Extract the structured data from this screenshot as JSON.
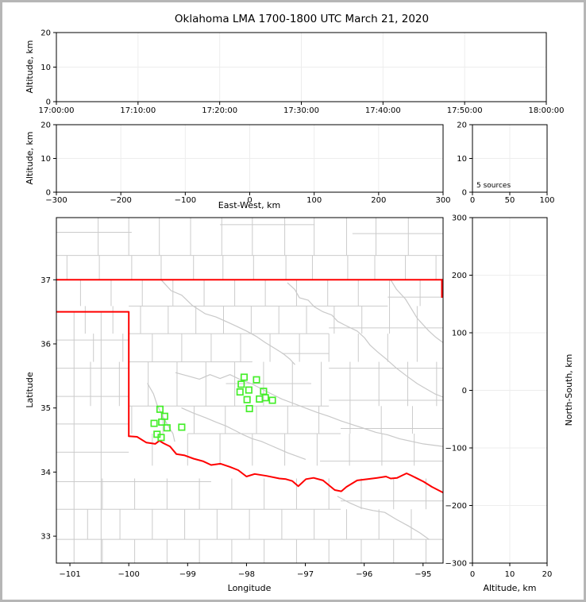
{
  "title": "Oklahoma LMA 1700-1800 UTC March 21, 2020",
  "colors": {
    "station_green": "#45ee2b",
    "state_border_red": "#ff0000",
    "county_gray": "#cbcbcb",
    "grid_gray": "#ededed"
  },
  "panels": {
    "time_height": {
      "ylabel": "Altitude, km",
      "xlim": [
        0,
        3600
      ],
      "ylim": [
        0,
        20
      ],
      "xticks": {
        "values": [
          0,
          600,
          1200,
          1800,
          2400,
          3000,
          3600
        ],
        "labels": [
          "17:00:00",
          "17:10:00",
          "17:20:00",
          "17:30:00",
          "17:40:00",
          "17:50:00",
          "18:00:00"
        ]
      },
      "yticks": {
        "values": [
          0,
          10,
          20
        ],
        "labels": [
          "0",
          "10",
          "20"
        ]
      },
      "grid": {
        "x": [
          600,
          1200,
          1800,
          2400,
          3000
        ],
        "y": [
          10
        ]
      }
    },
    "ew_height": {
      "ylabel": "Altitude, km",
      "xlabel": "East-West, km",
      "xlim": [
        -300,
        300
      ],
      "ylim": [
        0,
        20
      ],
      "xticks": {
        "values": [
          -300,
          -200,
          -100,
          0,
          100,
          200,
          300
        ],
        "labels": [
          "−300",
          "−200",
          "−100",
          "0",
          "100",
          "200",
          "300"
        ]
      },
      "yticks": {
        "values": [
          0,
          10,
          20
        ],
        "labels": [
          "0",
          "10",
          "20"
        ]
      },
      "grid": {
        "x": [
          -200,
          -100,
          0,
          100,
          200
        ],
        "y": [
          10
        ]
      }
    },
    "alt_hist": {
      "annotation": "5 sources",
      "xlim": [
        0,
        100
      ],
      "ylim": [
        0,
        20
      ],
      "xticks": {
        "values": [
          0,
          50,
          100
        ],
        "labels": [
          "0",
          "50",
          "100"
        ]
      },
      "yticks": {
        "values": [
          0,
          10,
          20
        ],
        "labels": [
          "0",
          "10",
          "20"
        ]
      },
      "grid": {
        "x": [
          50
        ],
        "y": [
          10
        ]
      }
    },
    "plan": {
      "xlabel": "Longitude",
      "ylabel": "Latitude",
      "xlim": [
        -101.23,
        -94.66
      ],
      "ylim": [
        32.58,
        37.97
      ],
      "xticks": {
        "values": [
          -101,
          -100,
          -99,
          -98,
          -97,
          -96,
          -95
        ],
        "labels": [
          "−101",
          "−100",
          "−99",
          "−98",
          "−97",
          "−96",
          "−95"
        ]
      },
      "yticks": {
        "values": [
          33,
          34,
          35,
          36,
          37
        ],
        "labels": [
          "33",
          "34",
          "35",
          "36",
          "37"
        ]
      },
      "grid": {
        "x": [],
        "y": []
      }
    },
    "ns_height": {
      "xlabel": "Altitude, km",
      "ylabel": "North-South, km",
      "xlim": [
        0,
        20
      ],
      "ylim": [
        -300,
        300
      ],
      "xticks": {
        "values": [
          0,
          10,
          20
        ],
        "labels": [
          "0",
          "10",
          "20"
        ]
      },
      "yticks": {
        "values": [
          -300,
          -200,
          -100,
          0,
          100,
          200,
          300
        ],
        "labels": [
          "−300",
          "−200",
          "−100",
          "0",
          "100",
          "200",
          "300"
        ]
      },
      "grid": {
        "x": [
          10
        ],
        "y": [
          -200,
          -100,
          0,
          100,
          200
        ]
      }
    }
  },
  "chart_data": {
    "type": "scatter",
    "title": "Oklahoma LMA 1700-1800 UTC March 21, 2020",
    "annotation": "5 sources",
    "note": "Altitude-vs-time, altitude-vs-east-west, source-histogram and north-south-vs-altitude panels are empty; plan view shows Oklahoma county map with LMA station markers (green squares).",
    "stations_lon_lat": [
      [
        -98.04,
        35.48
      ],
      [
        -97.83,
        35.44
      ],
      [
        -98.09,
        35.37
      ],
      [
        -97.96,
        35.28
      ],
      [
        -98.11,
        35.25
      ],
      [
        -97.99,
        35.13
      ],
      [
        -97.78,
        35.14
      ],
      [
        -97.71,
        35.26
      ],
      [
        -97.68,
        35.16
      ],
      [
        -97.56,
        35.12
      ],
      [
        -97.95,
        34.99
      ],
      [
        -99.47,
        34.98
      ],
      [
        -99.39,
        34.87
      ],
      [
        -99.57,
        34.76
      ],
      [
        -99.44,
        34.78
      ],
      [
        -99.35,
        34.69
      ],
      [
        -99.1,
        34.7
      ],
      [
        -99.52,
        34.59
      ],
      [
        -99.45,
        34.54
      ]
    ],
    "state_border": {
      "kansas_line": [
        [
          -101.23,
          37.0
        ],
        [
          -94.66,
          37.0
        ]
      ],
      "missouri_line": [
        [
          -94.68,
          37.0
        ],
        [
          -94.68,
          36.73
        ]
      ],
      "panhandle": [
        [
          -101.23,
          36.5
        ],
        [
          -100.0,
          36.5
        ],
        [
          -100.0,
          34.56
        ]
      ],
      "red_river": [
        [
          -100.0,
          34.56
        ],
        [
          -99.86,
          34.55
        ],
        [
          -99.7,
          34.46
        ],
        [
          -99.55,
          34.44
        ],
        [
          -99.48,
          34.49
        ],
        [
          -99.41,
          34.45
        ],
        [
          -99.3,
          34.4
        ],
        [
          -99.19,
          34.28
        ],
        [
          -99.05,
          34.26
        ],
        [
          -98.9,
          34.21
        ],
        [
          -98.74,
          34.17
        ],
        [
          -98.6,
          34.11
        ],
        [
          -98.44,
          34.13
        ],
        [
          -98.28,
          34.08
        ],
        [
          -98.14,
          34.03
        ],
        [
          -98.0,
          33.93
        ],
        [
          -97.86,
          33.97
        ],
        [
          -97.66,
          33.94
        ],
        [
          -97.44,
          33.9
        ],
        [
          -97.33,
          33.89
        ],
        [
          -97.22,
          33.86
        ],
        [
          -97.12,
          33.78
        ],
        [
          -96.99,
          33.89
        ],
        [
          -96.86,
          33.91
        ],
        [
          -96.7,
          33.87
        ],
        [
          -96.5,
          33.72
        ],
        [
          -96.39,
          33.7
        ],
        [
          -96.3,
          33.77
        ],
        [
          -96.12,
          33.87
        ],
        [
          -95.94,
          33.89
        ],
        [
          -95.78,
          33.91
        ],
        [
          -95.63,
          33.93
        ],
        [
          -95.55,
          33.9
        ],
        [
          -95.44,
          33.91
        ],
        [
          -95.28,
          33.98
        ],
        [
          -95.21,
          33.95
        ],
        [
          -95.12,
          33.91
        ],
        [
          -94.99,
          33.85
        ],
        [
          -94.85,
          33.77
        ],
        [
          -94.66,
          33.68
        ]
      ]
    },
    "rivers": [
      [
        [
          -99.45,
          37.0
        ],
        [
          -99.28,
          36.83
        ],
        [
          -99.1,
          36.76
        ],
        [
          -98.92,
          36.6
        ],
        [
          -98.7,
          36.47
        ],
        [
          -98.52,
          36.42
        ],
        [
          -98.35,
          36.35
        ],
        [
          -98.18,
          36.28
        ],
        [
          -98.0,
          36.2
        ],
        [
          -97.84,
          36.12
        ],
        [
          -97.68,
          36.02
        ],
        [
          -97.52,
          35.93
        ],
        [
          -97.38,
          35.85
        ],
        [
          -97.26,
          35.76
        ],
        [
          -97.18,
          35.68
        ]
      ],
      [
        [
          -97.3,
          36.95
        ],
        [
          -97.18,
          36.85
        ],
        [
          -97.1,
          36.72
        ],
        [
          -96.95,
          36.68
        ],
        [
          -96.85,
          36.58
        ],
        [
          -96.7,
          36.5
        ],
        [
          -96.55,
          36.45
        ],
        [
          -96.45,
          36.35
        ],
        [
          -96.3,
          36.28
        ],
        [
          -96.12,
          36.2
        ],
        [
          -96.0,
          36.1
        ],
        [
          -95.9,
          35.98
        ],
        [
          -95.78,
          35.88
        ],
        [
          -95.62,
          35.76
        ],
        [
          -95.45,
          35.62
        ],
        [
          -95.28,
          35.5
        ],
        [
          -95.1,
          35.38
        ],
        [
          -94.95,
          35.3
        ],
        [
          -94.8,
          35.22
        ],
        [
          -94.66,
          35.17
        ]
      ],
      [
        [
          -99.2,
          35.55
        ],
        [
          -99.0,
          35.5
        ],
        [
          -98.8,
          35.45
        ],
        [
          -98.62,
          35.52
        ],
        [
          -98.45,
          35.46
        ],
        [
          -98.28,
          35.52
        ],
        [
          -98.1,
          35.44
        ],
        [
          -97.92,
          35.38
        ],
        [
          -97.75,
          35.3
        ],
        [
          -97.58,
          35.22
        ],
        [
          -97.4,
          35.14
        ],
        [
          -97.2,
          35.07
        ],
        [
          -97.0,
          35.0
        ],
        [
          -96.8,
          34.93
        ],
        [
          -96.6,
          34.87
        ],
        [
          -96.4,
          34.8
        ],
        [
          -96.2,
          34.74
        ],
        [
          -96.0,
          34.68
        ],
        [
          -95.8,
          34.62
        ],
        [
          -95.6,
          34.58
        ],
        [
          -95.4,
          34.52
        ],
        [
          -95.2,
          34.48
        ],
        [
          -95.0,
          34.44
        ],
        [
          -94.66,
          34.4
        ]
      ],
      [
        [
          -99.68,
          35.38
        ],
        [
          -99.58,
          35.22
        ],
        [
          -99.52,
          35.05
        ],
        [
          -99.44,
          34.9
        ],
        [
          -99.35,
          34.75
        ],
        [
          -99.25,
          34.6
        ],
        [
          -99.22,
          34.48
        ]
      ],
      [
        [
          -99.1,
          35.0
        ],
        [
          -98.9,
          34.92
        ],
        [
          -98.7,
          34.85
        ],
        [
          -98.52,
          34.78
        ],
        [
          -98.35,
          34.72
        ],
        [
          -98.2,
          34.65
        ],
        [
          -98.05,
          34.58
        ],
        [
          -97.9,
          34.52
        ],
        [
          -97.75,
          34.48
        ],
        [
          -97.6,
          34.42
        ],
        [
          -97.45,
          34.36
        ],
        [
          -97.3,
          34.3
        ],
        [
          -97.15,
          34.25
        ],
        [
          -97.0,
          34.2
        ]
      ],
      [
        [
          -96.45,
          33.62
        ],
        [
          -96.25,
          33.52
        ],
        [
          -96.05,
          33.44
        ],
        [
          -95.85,
          33.4
        ],
        [
          -95.65,
          33.37
        ],
        [
          -95.45,
          33.26
        ],
        [
          -95.25,
          33.16
        ],
        [
          -95.05,
          33.05
        ],
        [
          -94.9,
          32.95
        ]
      ],
      [
        [
          -95.55,
          37.0
        ],
        [
          -95.45,
          36.85
        ],
        [
          -95.3,
          36.7
        ],
        [
          -95.2,
          36.55
        ],
        [
          -95.1,
          36.4
        ],
        [
          -95.0,
          36.3
        ],
        [
          -94.9,
          36.2
        ],
        [
          -94.78,
          36.1
        ],
        [
          -94.66,
          36.02
        ]
      ]
    ],
    "counties": {
      "h_segments": [
        [
          37.74,
          -101.23,
          -99.95
        ],
        [
          37.86,
          -98.45,
          -96.85
        ],
        [
          37.72,
          -96.2,
          -94.66
        ],
        [
          37.38,
          -101.23,
          -94.66
        ],
        [
          36.59,
          -100.0,
          -95.6
        ],
        [
          36.73,
          -95.6,
          -94.66
        ],
        [
          36.16,
          -100.0,
          -96.6
        ],
        [
          36.25,
          -96.6,
          -94.66
        ],
        [
          35.72,
          -100.0,
          -97.9
        ],
        [
          35.85,
          -97.4,
          -96.6
        ],
        [
          35.62,
          -96.6,
          -94.66
        ],
        [
          35.38,
          -98.35,
          -96.9
        ],
        [
          35.03,
          -100.0,
          -96.6
        ],
        [
          35.12,
          -96.6,
          -94.66
        ],
        [
          34.6,
          -99.0,
          -96.4
        ],
        [
          34.68,
          -96.4,
          -94.66
        ],
        [
          34.17,
          -96.75,
          -94.66
        ],
        [
          36.06,
          -101.23,
          -100.0
        ],
        [
          35.62,
          -101.23,
          -100.0
        ],
        [
          35.18,
          -101.23,
          -100.0
        ],
        [
          34.75,
          -101.23,
          -100.0
        ],
        [
          34.31,
          -101.23,
          -100.0
        ],
        [
          33.85,
          -101.23,
          -98.6
        ],
        [
          33.42,
          -101.23,
          -96.4
        ],
        [
          33.55,
          -96.4,
          -94.66
        ],
        [
          32.95,
          -101.23,
          -94.66
        ]
      ],
      "v_bands": [
        {
          "y1": 37.38,
          "y2": 37.97,
          "lons": [
            -100.52,
            -100.0,
            -99.48,
            -98.95,
            -98.42,
            -97.9,
            -97.35,
            -96.85,
            -96.3,
            -95.8,
            -95.25
          ]
        },
        {
          "y1": 37.0,
          "y2": 37.38,
          "lons": [
            -101.05,
            -100.5,
            -99.95,
            -99.45,
            -98.9,
            -98.4,
            -97.88,
            -97.33,
            -96.88,
            -96.28,
            -95.82,
            -95.3,
            -94.78
          ]
        },
        {
          "y1": 36.59,
          "y2": 37.0,
          "lons": [
            -100.82,
            -100.3,
            -99.77,
            -99.25,
            -98.72,
            -98.2,
            -97.68,
            -97.15,
            -96.62,
            -96.1,
            -95.57,
            -95.05
          ]
        },
        {
          "y1": 36.16,
          "y2": 36.59,
          "lons": [
            -100.74,
            -100.27,
            -99.8,
            -99.33,
            -98.86,
            -98.39,
            -97.92,
            -97.45,
            -96.98,
            -96.51,
            -96.04,
            -95.57,
            -95.1
          ]
        },
        {
          "y1": 35.72,
          "y2": 36.16,
          "lons": [
            -100.6,
            -100.1,
            -99.6,
            -99.1,
            -98.6,
            -98.1,
            -97.6,
            -97.1,
            -96.6,
            -96.1,
            -95.6,
            -95.1
          ]
        },
        {
          "y1": 35.03,
          "y2": 35.72,
          "lons": [
            -100.65,
            -100.16,
            -99.67,
            -99.18,
            -98.69,
            -98.2,
            -97.71,
            -97.22,
            -96.73,
            -96.24,
            -95.75,
            -95.26,
            -94.77
          ]
        },
        {
          "y1": 34.6,
          "y2": 35.03,
          "lons": [
            -99.95,
            -99.42,
            -98.89,
            -98.36,
            -97.83,
            -97.3,
            -96.77,
            -96.24,
            -95.71,
            -95.18
          ]
        },
        {
          "y1": 34.1,
          "y2": 34.6,
          "lons": [
            -99.6,
            -99.0,
            -98.45,
            -97.9,
            -97.35,
            -96.8,
            -96.25,
            -95.7,
            -95.15
          ]
        },
        {
          "y1": 36.5,
          "y2": 32.58,
          "lons": [
            -100.93,
            -100.47
          ]
        },
        {
          "y1": 33.42,
          "y2": 33.9,
          "lons": [
            -100.45,
            -99.9,
            -99.35,
            -98.8,
            -98.25,
            -97.7,
            -97.15,
            -96.6,
            -96.05,
            -95.5,
            -94.95
          ]
        },
        {
          "y1": 32.95,
          "y2": 33.42,
          "lons": [
            -100.7,
            -100.15,
            -99.6,
            -99.05,
            -98.5,
            -97.95,
            -97.4,
            -96.85,
            -96.3,
            -95.75,
            -95.2
          ]
        },
        {
          "y1": 32.58,
          "y2": 32.95,
          "lons": [
            -100.45,
            -99.9,
            -99.35,
            -98.8,
            -98.25,
            -97.7,
            -97.15,
            -96.6,
            -96.05,
            -95.5,
            -94.95
          ]
        }
      ]
    }
  }
}
